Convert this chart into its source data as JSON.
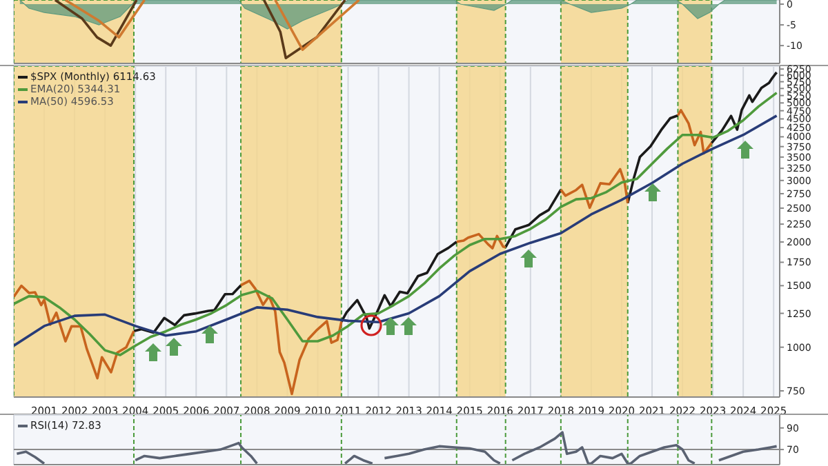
{
  "chart_data": [
    {
      "type": "line",
      "xlim": [
        2000,
        2025.2
      ],
      "xticks": [
        2001,
        2002,
        2003,
        2004,
        2005,
        2006,
        2007,
        2008,
        2009,
        2010,
        2011,
        2012,
        2013,
        2014,
        2015,
        2016,
        2017,
        2018,
        2019,
        2020,
        2021,
        2022,
        2023,
        2024,
        2025
      ],
      "ylim": [
        -14.3,
        1
      ],
      "yticks": [
        0,
        -5,
        -10
      ],
      "tick_labels": "y",
      "grid": true,
      "bands": [
        {
          "axis": "x",
          "from": 2000,
          "to": 2003.95,
          "color": "#f5d68a"
        },
        {
          "axis": "x",
          "from": 2007.47,
          "to": 2010.78,
          "color": "#f5d68a"
        },
        {
          "axis": "x",
          "from": 2014.57,
          "to": 2016.18,
          "color": "#f5d68a"
        },
        {
          "axis": "x",
          "from": 2018.0,
          "to": 2020.2,
          "color": "#f5d68a"
        },
        {
          "axis": "x",
          "from": 2021.85,
          "to": 2022.96,
          "color": "#f5d68a"
        }
      ],
      "series": [
        {
          "type": "area",
          "color": "#5e9a7e",
          "x": [
            2000.2,
            2000.5,
            2001.0,
            2002.0,
            2002.8,
            2003.5,
            2003.9,
            2004.0,
            2007.4,
            2007.6,
            2008.5,
            2009.0,
            2009.5,
            2010.5,
            2010.8,
            2011.0,
            2014.5,
            2014.7,
            2015.8,
            2016.2,
            2016.4,
            2018.0,
            2018.3,
            2019.0,
            2020.0,
            2020.3,
            2020.5,
            2021.8,
            2022.0,
            2022.5,
            2022.9,
            2023.2,
            2023.4,
            2025.1
          ],
          "values": [
            1,
            -1,
            -2,
            -3,
            -5,
            -3,
            0,
            1,
            1,
            -1,
            -4,
            -6,
            -4,
            -1,
            0,
            1,
            1,
            0,
            -1.5,
            0,
            1,
            1,
            0,
            -2,
            -1,
            0,
            1,
            1,
            0,
            -3.5,
            -2,
            0,
            1,
            1
          ]
        },
        {
          "color": "#5a3a1a",
          "x": [
            2001.36,
            2002.25,
            2002.74,
            2003.19,
            2004.04
          ],
          "values": [
            1,
            -3.5,
            -8,
            -10,
            1
          ]
        },
        {
          "color": "#5a3a1a",
          "x": [
            2008.23,
            2008.77,
            2008.95,
            2009.97,
            2010.9
          ],
          "values": [
            1,
            -6.7,
            -13,
            -8,
            1
          ]
        },
        {
          "color": "#d07a30",
          "x": [
            2001.7,
            2002.8,
            2003.46,
            2004.3
          ],
          "values": [
            1,
            -4,
            -8,
            1
          ]
        },
        {
          "color": "#d07a30",
          "x": [
            2008.6,
            2009.5,
            2011.36
          ],
          "values": [
            1,
            -11,
            1
          ]
        }
      ]
    },
    {
      "type": "line",
      "log": true,
      "xlim": [
        2000,
        2025.2
      ],
      "xticks": [
        2001,
        2002,
        2003,
        2004,
        2005,
        2006,
        2007,
        2008,
        2009,
        2010,
        2011,
        2012,
        2013,
        2014,
        2015,
        2016,
        2017,
        2018,
        2019,
        2020,
        2021,
        2022,
        2023,
        2024,
        2025
      ],
      "ylim": [
        720,
        6370
      ],
      "yticks": [
        750,
        1000,
        1250,
        1500,
        1750,
        2000,
        2250,
        2500,
        2750,
        3000,
        3250,
        3500,
        3750,
        4000,
        4250,
        4500,
        4750,
        5000,
        5250,
        5500,
        5750,
        6000,
        6250
      ],
      "grid": true,
      "legend": "top left",
      "bands": [
        {
          "axis": "x",
          "from": 2000,
          "to": 2003.95,
          "color": "#f5d68a"
        },
        {
          "axis": "x",
          "from": 2007.47,
          "to": 2010.78,
          "color": "#f5d68a"
        },
        {
          "axis": "x",
          "from": 2014.57,
          "to": 2016.18,
          "color": "#f5d68a"
        },
        {
          "axis": "x",
          "from": 2018.0,
          "to": 2020.2,
          "color": "#f5d68a"
        },
        {
          "axis": "x",
          "from": 2021.85,
          "to": 2022.96,
          "color": "#f5d68a"
        }
      ],
      "x": [
        2000.0,
        2000.25,
        2000.5,
        2000.7,
        2000.9,
        2001.0,
        2001.2,
        2001.4,
        2001.7,
        2001.9,
        2002.2,
        2002.4,
        2002.55,
        2002.75,
        2002.9,
        2003.2,
        2003.4,
        2003.7,
        2003.95,
        2004.2,
        2004.6,
        2004.95,
        2005.3,
        2005.6,
        2005.95,
        2006.4,
        2006.6,
        2006.95,
        2007.2,
        2007.47,
        2007.75,
        2007.95,
        2008.2,
        2008.4,
        2008.6,
        2008.75,
        2008.9,
        2009.15,
        2009.4,
        2009.7,
        2009.95,
        2010.3,
        2010.45,
        2010.65,
        2010.78,
        2010.95,
        2011.3,
        2011.6,
        2011.7,
        2011.95,
        2012.2,
        2012.4,
        2012.7,
        2012.95,
        2013.3,
        2013.6,
        2013.95,
        2014.3,
        2014.57,
        2014.8,
        2014.95,
        2015.3,
        2015.6,
        2015.75,
        2015.9,
        2016.1,
        2016.18,
        2016.5,
        2016.95,
        2017.3,
        2017.6,
        2018.0,
        2018.15,
        2018.5,
        2018.7,
        2018.95,
        2019.3,
        2019.6,
        2019.95,
        2020.1,
        2020.2,
        2020.4,
        2020.6,
        2020.95,
        2021.3,
        2021.6,
        2021.85,
        2021.95,
        2022.2,
        2022.4,
        2022.6,
        2022.7,
        2022.96,
        2023.3,
        2023.6,
        2023.8,
        2023.95,
        2024.2,
        2024.3,
        2024.6,
        2024.85,
        2024.95,
        2025.05,
        2025.1
      ],
      "series": [
        {
          "name": "$SPX (Monthly) 6114.63",
          "color": "#1a1a1a",
          "values": [
            null,
            null,
            null,
            null,
            null,
            null,
            null,
            null,
            null,
            null,
            null,
            null,
            null,
            null,
            null,
            null,
            null,
            null,
            1112,
            1126,
            1101,
            1212,
            1157,
            1234,
            1248,
            1270,
            1276,
            1418,
            1420,
            1503,
            null,
            null,
            null,
            null,
            null,
            null,
            null,
            null,
            null,
            null,
            null,
            null,
            null,
            null,
            1183,
            1258,
            1364,
            1219,
            1131,
            1258,
            1408,
            1310,
            1441,
            1426,
            1598,
            1633,
            1848,
            1924,
            2003,
            null,
            null,
            null,
            null,
            null,
            null,
            null,
            1932,
            2173,
            2239,
            2384,
            2470,
            2824,
            null,
            null,
            null,
            null,
            null,
            null,
            null,
            null,
            2585,
            3044,
            3500,
            3756,
            4181,
            4522,
            4605,
            null,
            null,
            null,
            null,
            null,
            3840,
            4169,
            4589,
            4194,
            4770,
            5254,
            5036,
            5522,
            5705,
            5882,
            6040,
            6115
          ]
        },
        {
          "color": "#c8641e",
          "values": [
            1394,
            1499,
            1430,
            1436,
            1320,
            1366,
            1160,
            1255,
            1040,
            1148,
            1147,
            990,
            911,
            815,
            936,
            848,
            964,
            1000,
            1112,
            null,
            null,
            null,
            null,
            null,
            null,
            null,
            null,
            null,
            null,
            1503,
            1549,
            1468,
            1322,
            1400,
            1267,
            968,
            903,
            735,
            919,
            1057,
            1115,
            1187,
            1030,
            1049,
            1183,
            null,
            null,
            null,
            null,
            null,
            null,
            null,
            null,
            null,
            null,
            null,
            null,
            null,
            2003,
            2018,
            2058,
            2107,
            1972,
            1920,
            2080,
            1940,
            1932,
            null,
            null,
            null,
            null,
            2824,
            2713,
            2816,
            2914,
            2507,
            2945,
            2926,
            3230,
            2954,
            2585,
            null,
            null,
            null,
            null,
            null,
            4605,
            4766,
            4373,
            3785,
            4130,
            3586,
            3840,
            null,
            null,
            null,
            null,
            null,
            null,
            null,
            null,
            null,
            null,
            null
          ]
        },
        {
          "name": "EMA(20) 5344.31",
          "color": "#4f9a3c",
          "x": [
            2000.0,
            2000.5,
            2001.0,
            2001.5,
            2002.0,
            2002.5,
            2003.0,
            2003.5,
            2004.0,
            2004.5,
            2005.0,
            2005.5,
            2006.0,
            2006.5,
            2007.0,
            2007.5,
            2008.0,
            2008.5,
            2009.0,
            2009.5,
            2010.0,
            2010.5,
            2011.0,
            2011.5,
            2012.0,
            2012.5,
            2013.0,
            2013.5,
            2014.0,
            2014.5,
            2015.0,
            2015.5,
            2016.0,
            2016.5,
            2017.0,
            2017.5,
            2018.0,
            2018.5,
            2019.0,
            2019.5,
            2020.0,
            2020.5,
            2021.0,
            2021.5,
            2022.0,
            2022.5,
            2023.0,
            2023.5,
            2024.0,
            2024.5,
            2025.1
          ],
          "values": [
            1330,
            1400,
            1390,
            1300,
            1200,
            1090,
            980,
            950,
            1010,
            1070,
            1110,
            1160,
            1200,
            1250,
            1320,
            1410,
            1450,
            1380,
            1200,
            1040,
            1040,
            1080,
            1150,
            1240,
            1250,
            1320,
            1400,
            1520,
            1680,
            1830,
            1960,
            2040,
            2040,
            2080,
            2180,
            2320,
            2520,
            2650,
            2670,
            2780,
            2960,
            3030,
            3350,
            3700,
            4050,
            4050,
            3980,
            4160,
            4460,
            4880,
            5344
          ]
        },
        {
          "name": "MA(50) 4596.53",
          "color": "#283c78",
          "x": [
            2000.0,
            2001.0,
            2002.0,
            2003.0,
            2004.0,
            2005.0,
            2006.0,
            2007.0,
            2008.0,
            2009.0,
            2010.0,
            2011.0,
            2012.0,
            2013.0,
            2014.0,
            2015.0,
            2016.0,
            2017.0,
            2018.0,
            2019.0,
            2020.0,
            2021.0,
            2022.0,
            2023.0,
            2024.0,
            2025.1
          ],
          "values": [
            1010,
            1150,
            1230,
            1240,
            1150,
            1080,
            1110,
            1200,
            1300,
            1280,
            1220,
            1190,
            1180,
            1250,
            1400,
            1650,
            1850,
            1990,
            2120,
            2400,
            2640,
            2950,
            3350,
            3700,
            4050,
            4597
          ]
        }
      ]
    },
    {
      "type": "line",
      "xlim": [
        2000,
        2025.2
      ],
      "xticks": [
        2001,
        2002,
        2003,
        2004,
        2005,
        2006,
        2007,
        2008,
        2009,
        2010,
        2011,
        2012,
        2013,
        2014,
        2015,
        2016,
        2017,
        2018,
        2019,
        2020,
        2021,
        2022,
        2023,
        2024,
        2025
      ],
      "ylim": [
        56,
        102
      ],
      "yticks": [
        90,
        70
      ],
      "tick_labels": "y",
      "grid": true,
      "legend": "top left",
      "ref_lines": [
        {
          "axis": "y",
          "value": 70,
          "color": "#8a8a8a"
        },
        {
          "axis": "x",
          "value": 2003.95,
          "color": "#4a9a3a",
          "line_style": "dashed"
        },
        {
          "axis": "x",
          "value": 2007.47,
          "color": "#4a9a3a",
          "line_style": "dashed"
        },
        {
          "axis": "x",
          "value": 2010.78,
          "color": "#4a9a3a",
          "line_style": "dashed"
        },
        {
          "axis": "x",
          "value": 2014.57,
          "color": "#4a9a3a",
          "line_style": "dashed"
        },
        {
          "axis": "x",
          "value": 2016.18,
          "color": "#4a9a3a",
          "line_style": "dashed"
        },
        {
          "axis": "x",
          "value": 2018.0,
          "color": "#4a9a3a",
          "line_style": "dashed"
        },
        {
          "axis": "x",
          "value": 2020.2,
          "color": "#4a9a3a",
          "line_style": "dashed"
        },
        {
          "axis": "x",
          "value": 2021.85,
          "color": "#4a9a3a",
          "line_style": "dashed"
        },
        {
          "axis": "x",
          "value": 2022.96,
          "color": "#4a9a3a",
          "line_style": "dashed"
        }
      ],
      "x": [
        2000.1,
        2000.4,
        2000.7,
        2001.0,
        2001.1,
        2004.0,
        2004.3,
        2004.8,
        2005.3,
        2005.8,
        2006.3,
        2006.8,
        2007.2,
        2007.4,
        2007.5,
        2007.8,
        2008.0,
        2008.1,
        2010.9,
        2011.2,
        2011.5,
        2011.8,
        2011.9,
        2012.2,
        2012.6,
        2013.0,
        2013.5,
        2014.0,
        2014.5,
        2015.0,
        2015.5,
        2015.8,
        2016.0,
        2016.1,
        2016.4,
        2016.8,
        2017.3,
        2017.8,
        2018.05,
        2018.2,
        2018.5,
        2018.7,
        2018.9,
        2019.0,
        2019.3,
        2019.7,
        2020.0,
        2020.2,
        2020.3,
        2020.6,
        2021.0,
        2021.4,
        2021.8,
        2022.0,
        2022.2,
        2022.4,
        2022.5,
        2023.2,
        2023.6,
        2024.0,
        2024.5,
        2024.9,
        2025.1
      ],
      "series": [
        {
          "name": "RSI(14) 72.83",
          "color": "#5a6272",
          "values": [
            66,
            68,
            63,
            57,
            null,
            60,
            64,
            62,
            64,
            66,
            68,
            70,
            74,
            76,
            72,
            64,
            57,
            null,
            57,
            64,
            60,
            57,
            null,
            62,
            64,
            66,
            70,
            73,
            72,
            71,
            68,
            60,
            57,
            null,
            60,
            66,
            72,
            80,
            86,
            66,
            68,
            72,
            57,
            57,
            64,
            62,
            66,
            57,
            57,
            64,
            68,
            72,
            74,
            70,
            60,
            57,
            null,
            60,
            64,
            68,
            70,
            72,
            73
          ]
        }
      ]
    }
  ]
}
